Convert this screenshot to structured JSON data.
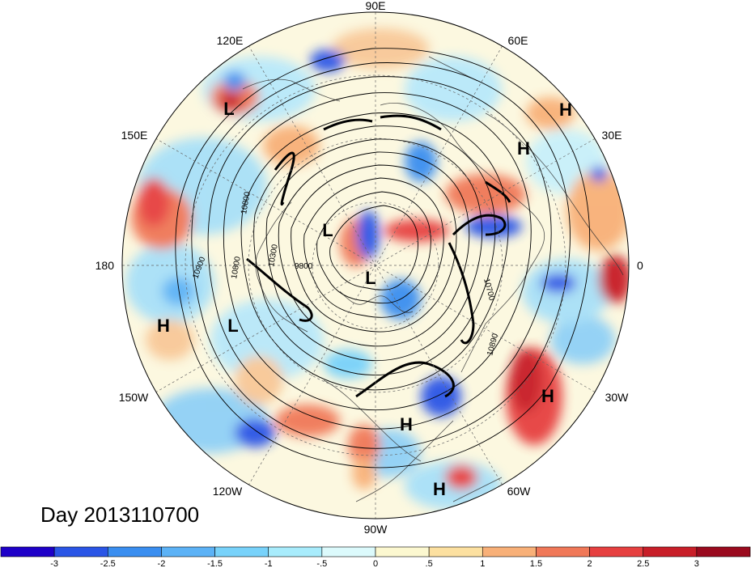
{
  "title": "Day 2013110700",
  "longitude_labels": {
    "lon_90e": "90E",
    "lon_60e": "60E",
    "lon_30e": "30E",
    "lon_0": "0",
    "lon_30w": "30W",
    "lon_60w": "60W",
    "lon_90w": "90W",
    "lon_120w": "120W",
    "lon_150w": "150W",
    "lon_180": "180",
    "lon_150e": "150E",
    "lon_120e": "120E"
  },
  "pressure_systems": [
    {
      "id": "h1",
      "label": "H"
    },
    {
      "id": "h2",
      "label": "H"
    },
    {
      "id": "h3",
      "label": "H"
    },
    {
      "id": "h4",
      "label": "H"
    },
    {
      "id": "h5",
      "label": "H"
    },
    {
      "id": "h6",
      "label": "H"
    },
    {
      "id": "l1",
      "label": "L"
    },
    {
      "id": "l2",
      "label": "L"
    },
    {
      "id": "l3",
      "label": "L"
    },
    {
      "id": "l4",
      "label": "L"
    }
  ],
  "contour_labels": {
    "c1": "10800",
    "c2": "10800",
    "c3": "10900",
    "c4": "10300",
    "c5": "9800",
    "c6": "10700",
    "c7": "10890"
  },
  "colorbar": {
    "ticks": [
      "-3",
      "-2.5",
      "-2",
      "-1.5",
      "-1",
      "-.5",
      "0",
      ".5",
      "1",
      "1.5",
      "2",
      "2.5",
      "3"
    ],
    "colors": [
      "#1e00c8",
      "#2a55e6",
      "#3a8ef0",
      "#5cb2f6",
      "#78d2fa",
      "#a8ecfc",
      "#dcfafc",
      "#fcf8d0",
      "#fce0a0",
      "#f8b078",
      "#f07858",
      "#e64040",
      "#c81e28",
      "#9a0a1e"
    ]
  }
}
